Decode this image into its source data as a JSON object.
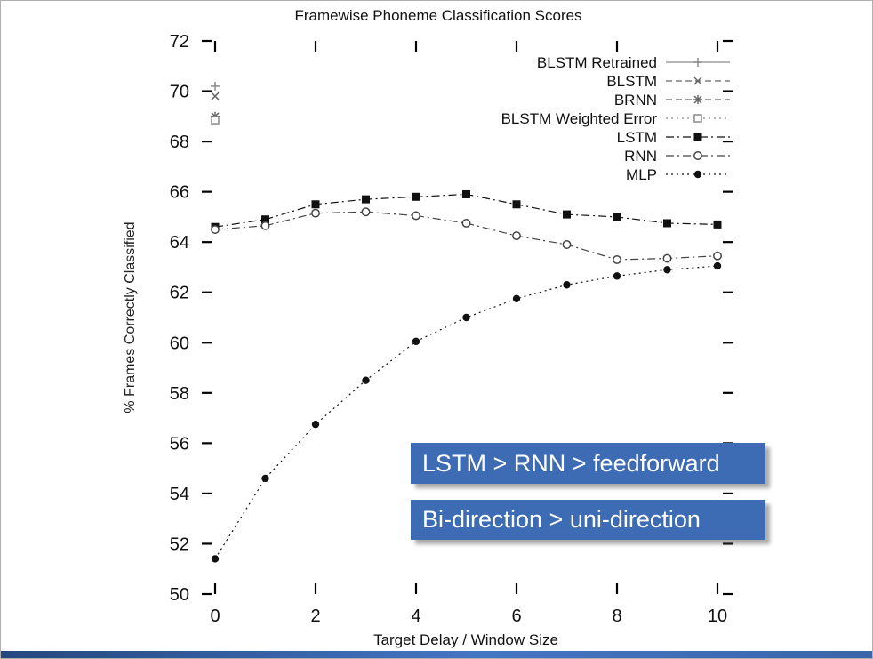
{
  "slide": {
    "accent_color": "#3d6cb4",
    "footer_gradient": [
      "#24477e",
      "#4576c4",
      "#3a65a8"
    ],
    "annotations": [
      {
        "text": "LSTM > RNN > feedforward"
      },
      {
        "text": "Bi-direction > uni-direction"
      }
    ]
  },
  "chart_data": {
    "type": "line",
    "title": "Framewise Phoneme Classification Scores",
    "xlabel": "Target Delay / Window Size",
    "ylabel": "% Frames Correctly Classified",
    "xlim": [
      0,
      10
    ],
    "ylim": [
      50,
      72
    ],
    "xticks": [
      0,
      2,
      4,
      6,
      8,
      10
    ],
    "yticks": [
      50,
      52,
      54,
      56,
      58,
      60,
      62,
      64,
      66,
      68,
      70,
      72
    ],
    "grid": false,
    "legend_position": "top-right-inside",
    "series": [
      {
        "name": "BLSTM Retrained",
        "marker": "plus",
        "line": "solid",
        "color": "#8a8a8a",
        "x": [
          0
        ],
        "y": [
          70.2
        ]
      },
      {
        "name": "BLSTM",
        "marker": "x",
        "line": "dashed",
        "color": "#666666",
        "x": [
          0
        ],
        "y": [
          69.8
        ]
      },
      {
        "name": "BRNN",
        "marker": "asterisk",
        "line": "dashed",
        "color": "#666666",
        "x": [
          0
        ],
        "y": [
          69.0
        ]
      },
      {
        "name": "BLSTM Weighted Error",
        "marker": "open-square",
        "line": "dotted",
        "color": "#8a8a8a",
        "x": [
          0
        ],
        "y": [
          68.85
        ]
      },
      {
        "name": "LSTM",
        "marker": "filled-square",
        "line": "dashdot",
        "color": "#111111",
        "x": [
          0,
          1,
          2,
          3,
          4,
          5,
          6,
          7,
          8,
          9,
          10
        ],
        "y": [
          64.6,
          64.9,
          65.5,
          65.7,
          65.8,
          65.9,
          65.5,
          65.1,
          65.0,
          64.75,
          64.7
        ]
      },
      {
        "name": "RNN",
        "marker": "open-circle",
        "line": "dashdot",
        "color": "#444444",
        "x": [
          0,
          1,
          2,
          3,
          4,
          5,
          6,
          7,
          8,
          9,
          10
        ],
        "y": [
          64.5,
          64.65,
          65.15,
          65.2,
          65.05,
          64.75,
          64.25,
          63.9,
          63.3,
          63.35,
          63.45
        ]
      },
      {
        "name": "MLP",
        "marker": "filled-circle",
        "line": "dotted",
        "color": "#111111",
        "x": [
          0,
          1,
          2,
          3,
          4,
          5,
          6,
          7,
          8,
          9,
          10
        ],
        "y": [
          51.4,
          54.6,
          56.75,
          58.5,
          60.05,
          61.0,
          61.75,
          62.3,
          62.65,
          62.9,
          63.05
        ]
      }
    ]
  }
}
